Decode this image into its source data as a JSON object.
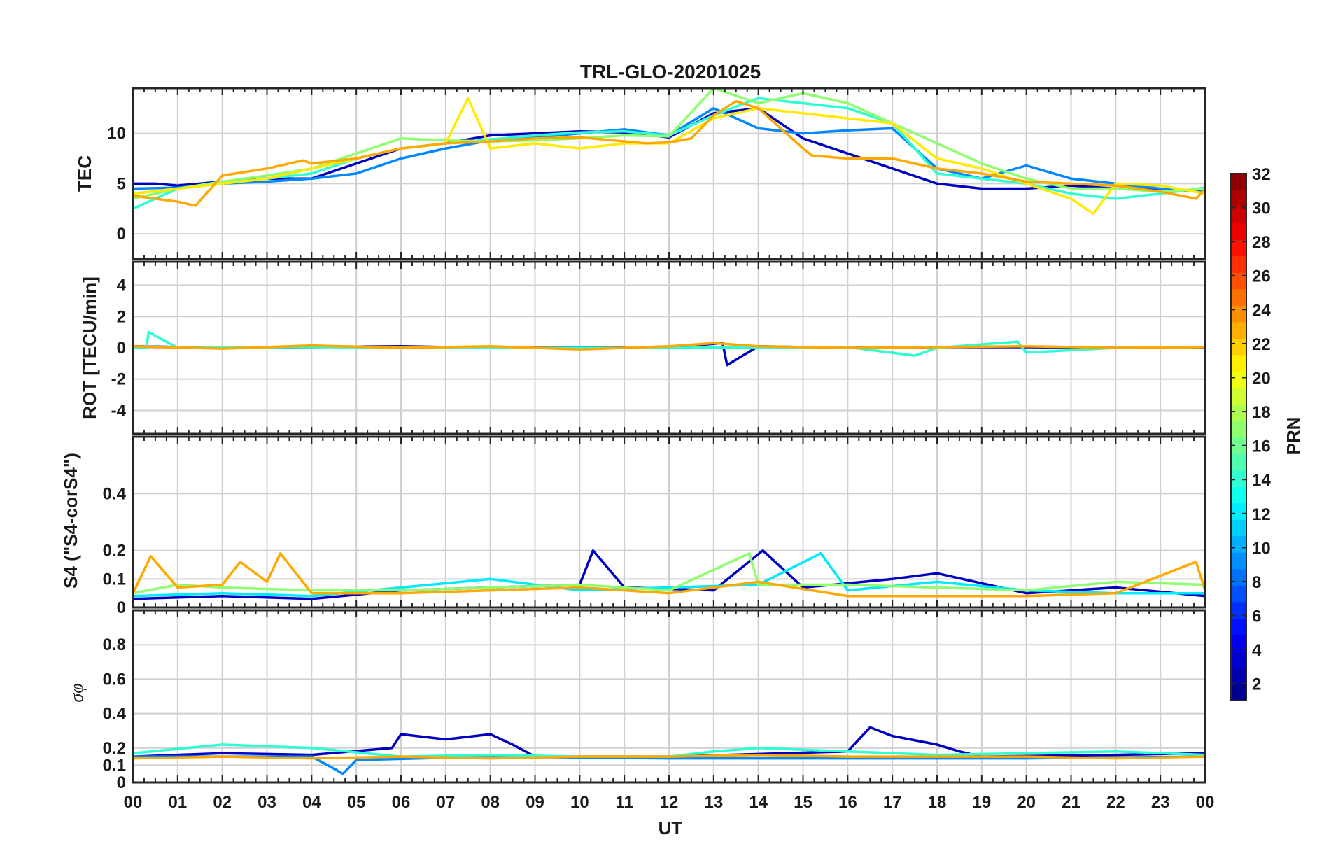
{
  "chart_data": {
    "type": "line",
    "title": "TRL-GLO-20201025",
    "xlabel": "UT",
    "x_tick_labels": [
      "00",
      "01",
      "02",
      "03",
      "04",
      "05",
      "06",
      "07",
      "08",
      "09",
      "10",
      "11",
      "12",
      "13",
      "14",
      "15",
      "16",
      "17",
      "18",
      "19",
      "20",
      "21",
      "22",
      "23",
      "00"
    ],
    "x_range_hours": [
      0,
      24
    ],
    "panels": [
      {
        "name": "tec",
        "ylabel": "TEC",
        "ylim": [
          -2.5,
          14.5
        ],
        "yticks": [
          0,
          5,
          10
        ],
        "ytick_labels": [
          "0",
          "5",
          "10"
        ],
        "series": [
          {
            "prn": 3,
            "x": [
              0,
              0.5,
              1,
              2,
              3,
              4,
              5,
              6,
              7,
              8,
              9,
              10,
              11,
              12,
              13,
              14,
              15,
              16,
              17,
              18,
              19,
              20,
              21,
              22,
              23,
              24
            ],
            "y": [
              5,
              5,
              4.8,
              5.2,
              5.5,
              5.5,
              7,
              8.5,
              9,
              9.8,
              10,
              10.2,
              10.1,
              9.6,
              12,
              12.5,
              9.5,
              8,
              6.5,
              5,
              4.5,
              4.5,
              4.8,
              4.5,
              4.4,
              4.2
            ]
          },
          {
            "prn": 9,
            "x": [
              0,
              1,
              2,
              3,
              4,
              5,
              6,
              7,
              8,
              9,
              10,
              11,
              12,
              13,
              14,
              15,
              16,
              17,
              18,
              19,
              20,
              21,
              22,
              23,
              24
            ],
            "y": [
              4.5,
              4.6,
              5,
              5.2,
              5.5,
              6,
              7.5,
              8.5,
              9.3,
              9.6,
              10,
              10.4,
              9.8,
              12.5,
              10.5,
              10,
              10.3,
              10.5,
              6.5,
              5.5,
              6.8,
              5.5,
              5,
              4.5,
              4.2
            ]
          },
          {
            "prn": 14,
            "x": [
              0,
              1,
              2,
              3,
              4,
              5,
              6,
              7,
              8,
              9,
              10,
              11,
              12,
              13,
              14,
              15,
              16,
              17,
              18,
              19,
              20,
              21,
              22,
              23,
              24
            ],
            "y": [
              2.5,
              4.5,
              5,
              5.5,
              6,
              7.5,
              8.5,
              9,
              9.4,
              9.8,
              10.1,
              10.2,
              9.8,
              11.8,
              13.5,
              13,
              12.5,
              11,
              6,
              5.5,
              5,
              4,
              3.5,
              4,
              4.6
            ]
          },
          {
            "prn": 17,
            "x": [
              0,
              1,
              2,
              3,
              4,
              5,
              6,
              7,
              8,
              9,
              10,
              11,
              12,
              13,
              14,
              15,
              16,
              17,
              18,
              19,
              20,
              21,
              22,
              23,
              24
            ],
            "y": [
              3.5,
              4.5,
              5.2,
              5.8,
              6.5,
              8,
              9.5,
              9.3,
              9.2,
              9.3,
              9.5,
              9.8,
              9.7,
              14.5,
              13,
              14,
              13,
              11,
              9,
              7,
              5.5,
              4.5,
              4.5,
              4.2,
              4.5
            ]
          },
          {
            "prn": 21,
            "x": [
              0,
              1,
              2,
              3,
              4,
              5,
              6,
              7,
              7.5,
              8,
              9,
              10,
              11,
              12,
              13,
              14,
              15,
              16,
              17,
              18,
              19,
              20,
              21,
              21.5,
              22,
              23,
              24
            ],
            "y": [
              4,
              4.5,
              5,
              5.5,
              6.5,
              7.5,
              8.5,
              9,
              13.5,
              8.5,
              9,
              8.5,
              9,
              9,
              11.5,
              12.5,
              12,
              11.5,
              11,
              7.5,
              6.5,
              5,
              3.5,
              2,
              5,
              4.8,
              4
            ]
          },
          {
            "prn": 23,
            "x": [
              0,
              0.5,
              1,
              1.4,
              2,
              3,
              3.8,
              4,
              5,
              6,
              7,
              8,
              9,
              10,
              11,
              11.5,
              12,
              12.5,
              13,
              13.5,
              14,
              14.5,
              15,
              15.2,
              16,
              17,
              18,
              19,
              20,
              21,
              22,
              23,
              23.8,
              24
            ],
            "y": [
              3.8,
              3.5,
              3.2,
              2.8,
              5.8,
              6.5,
              7.3,
              7,
              7.5,
              8.5,
              9,
              9.2,
              9.5,
              9.6,
              9.2,
              9,
              9.1,
              9.5,
              11.8,
              13.2,
              12.5,
              10.5,
              8.5,
              7.8,
              7.5,
              7.5,
              6.5,
              6,
              5.2,
              5,
              4.8,
              4.2,
              3.5,
              4.5
            ]
          }
        ]
      },
      {
        "name": "rot",
        "ylabel": "ROT [TECU/min]",
        "ylim": [
          -5.5,
          5.5
        ],
        "yticks": [
          -4,
          -2,
          0,
          2,
          4
        ],
        "ytick_labels": [
          "-4",
          "-2",
          "0",
          "2",
          "4"
        ],
        "series": [
          {
            "prn": 3,
            "x": [
              0,
              2,
              4,
              6,
              8,
              10,
              12,
              13.2,
              13.3,
              14,
              16,
              18,
              20,
              22,
              24
            ],
            "y": [
              0.1,
              0,
              0.05,
              0.1,
              0,
              0.05,
              0.05,
              0.3,
              -1.1,
              0.1,
              0,
              0.05,
              0.05,
              0,
              0
            ]
          },
          {
            "prn": 14,
            "x": [
              0,
              0.3,
              0.35,
              1,
              4,
              8,
              12,
              16,
              17.5,
              18,
              19.8,
              20,
              22,
              24
            ],
            "y": [
              0,
              0,
              1,
              0,
              0.05,
              0,
              0,
              0.05,
              -0.5,
              0,
              0.4,
              -0.3,
              0,
              0.05
            ]
          },
          {
            "prn": 23,
            "x": [
              0,
              2,
              4,
              6,
              8,
              10,
              12,
              13,
              14,
              16,
              18,
              20,
              22,
              24
            ],
            "y": [
              0.1,
              -0.05,
              0.15,
              0,
              0.1,
              -0.1,
              0.1,
              0.3,
              0.1,
              0,
              0.05,
              0.1,
              0,
              0.05
            ]
          }
        ]
      },
      {
        "name": "s4",
        "ylabel": "S4 (\"S4-corS4\")",
        "ylim": [
          0,
          0.6
        ],
        "yticks": [
          0,
          0.1,
          0.2,
          0.4
        ],
        "ytick_labels": [
          "0",
          "0.1",
          "0.2",
          "0.4"
        ],
        "series": [
          {
            "prn": 3,
            "x": [
              0,
              2,
              4,
              6,
              8,
              10,
              10.3,
              11,
              13,
              14.1,
              15,
              17,
              18,
              20,
              22,
              24
            ],
            "y": [
              0.03,
              0.04,
              0.03,
              0.06,
              0.07,
              0.08,
              0.2,
              0.07,
              0.06,
              0.2,
              0.07,
              0.1,
              0.12,
              0.05,
              0.07,
              0.04
            ]
          },
          {
            "prn": 12,
            "x": [
              0,
              2,
              4,
              6,
              8,
              10,
              12,
              14,
              15.4,
              16,
              18,
              20,
              22,
              24
            ],
            "y": [
              0.04,
              0.05,
              0.04,
              0.07,
              0.1,
              0.06,
              0.07,
              0.08,
              0.19,
              0.06,
              0.09,
              0.06,
              0.05,
              0.05
            ]
          },
          {
            "prn": 17,
            "x": [
              0,
              1,
              2,
              4,
              6,
              8,
              10,
              12,
              13.8,
              14,
              16,
              18,
              20,
              22,
              24
            ],
            "y": [
              0.05,
              0.08,
              0.07,
              0.06,
              0.06,
              0.07,
              0.08,
              0.06,
              0.19,
              0.08,
              0.08,
              0.07,
              0.06,
              0.09,
              0.08
            ]
          },
          {
            "prn": 23,
            "x": [
              0,
              0.4,
              1,
              2,
              2.4,
              3,
              3.3,
              4,
              6,
              8,
              10,
              12,
              14,
              16,
              18,
              20,
              22,
              23.8,
              24
            ],
            "y": [
              0.05,
              0.18,
              0.07,
              0.08,
              0.16,
              0.09,
              0.19,
              0.05,
              0.05,
              0.06,
              0.07,
              0.05,
              0.09,
              0.04,
              0.04,
              0.04,
              0.05,
              0.16,
              0.06
            ]
          }
        ]
      },
      {
        "name": "sigma_phi",
        "ylabel": "σφ",
        "ylim": [
          0,
          1.0
        ],
        "yticks": [
          0,
          0.1,
          0.2,
          0.4,
          0.6,
          0.8
        ],
        "ytick_labels": [
          "0",
          "0.1",
          "0.2",
          "0.4",
          "0.6",
          "0.8"
        ],
        "series": [
          {
            "prn": 3,
            "x": [
              0,
              2,
              4,
              5.8,
              6,
              7,
              8,
              8.5,
              9,
              12,
              16,
              16.5,
              17,
              18,
              18.5,
              19,
              22,
              24
            ],
            "y": [
              0.15,
              0.17,
              0.16,
              0.2,
              0.28,
              0.25,
              0.28,
              0.22,
              0.15,
              0.15,
              0.18,
              0.32,
              0.27,
              0.22,
              0.18,
              0.15,
              0.16,
              0.17
            ]
          },
          {
            "prn": 9,
            "x": [
              0,
              4,
              4.5,
              4.7,
              5,
              8,
              12,
              16,
              20,
              24
            ],
            "y": [
              0.15,
              0.15,
              0.08,
              0.05,
              0.13,
              0.15,
              0.14,
              0.14,
              0.14,
              0.15
            ]
          },
          {
            "prn": 14,
            "x": [
              0,
              2,
              4,
              6,
              8,
              10,
              12,
              13,
              14,
              16,
              18,
              20,
              22,
              24
            ],
            "y": [
              0.17,
              0.22,
              0.2,
              0.15,
              0.16,
              0.15,
              0.15,
              0.18,
              0.2,
              0.18,
              0.16,
              0.17,
              0.18,
              0.16
            ]
          },
          {
            "prn": 23,
            "x": [
              0,
              2,
              4,
              6,
              8,
              10,
              12,
              14,
              16,
              18,
              20,
              22,
              24
            ],
            "y": [
              0.14,
              0.15,
              0.14,
              0.15,
              0.14,
              0.15,
              0.15,
              0.16,
              0.15,
              0.15,
              0.15,
              0.14,
              0.15
            ]
          }
        ]
      }
    ],
    "colorbar": {
      "label": "PRN",
      "range": [
        1,
        32
      ],
      "ticks": [
        "2",
        "4",
        "6",
        "8",
        "10",
        "12",
        "14",
        "16",
        "18",
        "20",
        "22",
        "24",
        "26",
        "28",
        "30",
        "32"
      ],
      "colormap": "jet",
      "levels": 32
    },
    "colors": {
      "axis": "#262626",
      "grid": "#d0d0d0",
      "background": "#ffffff"
    }
  }
}
